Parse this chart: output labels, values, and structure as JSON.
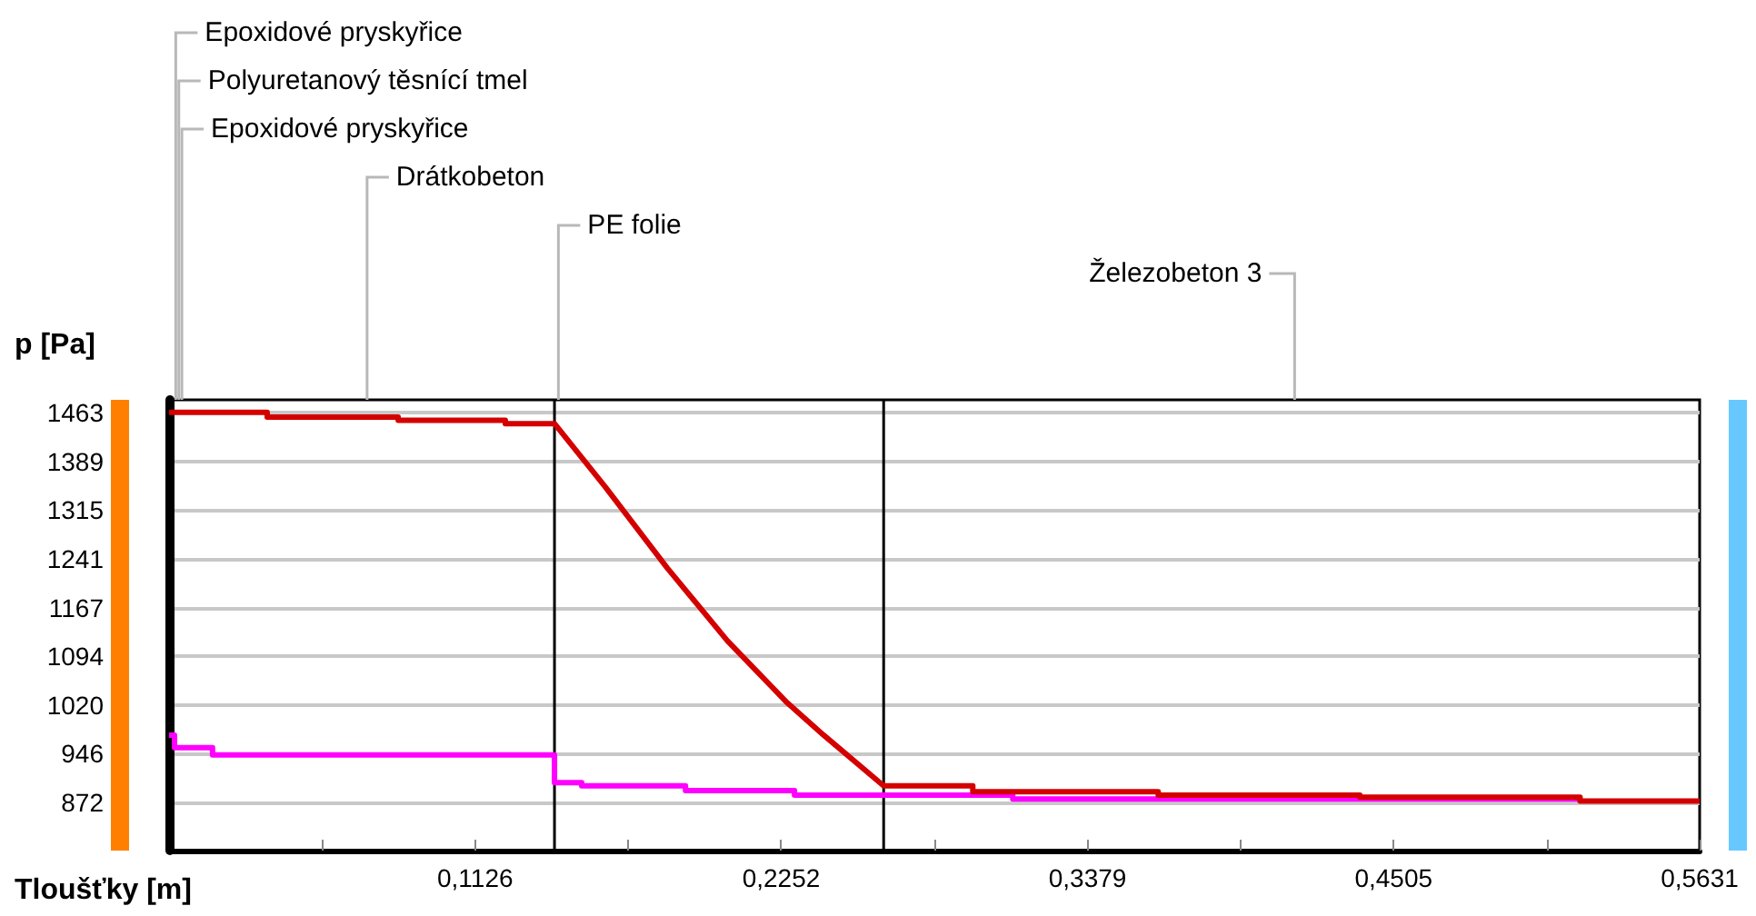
{
  "chart_data": {
    "type": "line",
    "xlabel": "Tloušťky [m]",
    "ylabel": "p [Pa]",
    "xlim": [
      0,
      0.5631
    ],
    "xticks": [
      {
        "value": 0.0563,
        "label": null
      },
      {
        "value": 0.1126,
        "label": "0,1126"
      },
      {
        "value": 0.1689,
        "label": null
      },
      {
        "value": 0.2252,
        "label": "0,2252"
      },
      {
        "value": 0.2815,
        "label": null
      },
      {
        "value": 0.3379,
        "label": "0,3379"
      },
      {
        "value": 0.3942,
        "label": null
      },
      {
        "value": 0.4505,
        "label": "0,4505"
      },
      {
        "value": 0.5068,
        "label": null
      },
      {
        "value": 0.5631,
        "label": "0,5631"
      }
    ],
    "ylim": [
      799,
      1482
    ],
    "yticks": [
      872,
      946,
      1020,
      1094,
      1167,
      1241,
      1315,
      1389,
      1463
    ],
    "grid": "y",
    "series": [
      {
        "color": "#d40000",
        "x": [
          0,
          0.0361,
          0.0361,
          0.0843,
          0.0843,
          0.1237,
          0.1237,
          0.1418,
          0.1605,
          0.1833,
          0.2054,
          0.2274,
          0.2408,
          0.2629,
          0.2957,
          0.2957,
          0.3639,
          0.3639,
          0.4381,
          0.4381,
          0.5191,
          0.5191,
          0.5631
        ],
        "values": [
          1463,
          1463,
          1456,
          1456,
          1451,
          1451,
          1446,
          1446,
          1350,
          1227,
          1117,
          1023,
          974,
          897,
          897,
          888,
          888,
          883,
          883,
          880,
          880,
          874,
          874
        ]
      },
      {
        "color": "#ff00ff",
        "x": [
          0,
          0.002,
          0.002,
          0.016,
          0.016,
          0.1418,
          0.1418,
          0.1518,
          0.1518,
          0.19,
          0.19,
          0.2301,
          0.2301,
          0.3104,
          0.3104,
          0.5184,
          0.5184
        ],
        "values": [
          974,
          974,
          955,
          955,
          944,
          944,
          902,
          902,
          897,
          897,
          890,
          890,
          883,
          883,
          877,
          877,
          874
        ]
      }
    ],
    "ref_lines": [
      {
        "axis": "x",
        "value": 0.1418,
        "color": "#000000"
      },
      {
        "axis": "x",
        "value": 0.2629,
        "color": "#000000"
      }
    ],
    "annotations": [
      "Epoxidové pryskyřice",
      "Polyuretanový těsnící tmel",
      "Epoxidové pryskyřice",
      "Drátkobeton",
      "PE folie",
      "Železobeton 3"
    ]
  }
}
